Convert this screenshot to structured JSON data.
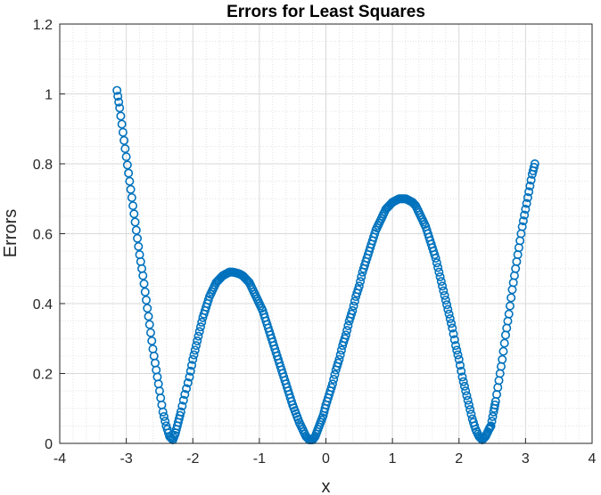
{
  "chart_data": {
    "type": "scatter",
    "title": "Errors for Least Squares",
    "xlabel": "x",
    "ylabel": "Errors",
    "xlim": [
      -4,
      4
    ],
    "ylim": [
      0,
      1.2
    ],
    "xticks": [
      -4,
      -3,
      -2,
      -1,
      0,
      1,
      2,
      3,
      4
    ],
    "yticks": [
      0,
      0.2,
      0.4,
      0.6,
      0.8,
      1,
      1.2
    ],
    "xtick_labels": [
      "-4",
      "-3",
      "-2",
      "-1",
      "0",
      "1",
      "2",
      "3",
      "4"
    ],
    "ytick_labels": [
      "0",
      "0.2",
      "0.4",
      "0.6",
      "0.8",
      "1",
      "1.2"
    ],
    "grid": true,
    "minor_grid": true,
    "marker": "circle-open",
    "colors": {
      "series": "#0072bd",
      "grid": "#d9d9d9",
      "axis": "#262626"
    },
    "series": [
      {
        "x": [
          -3.14,
          -3.1,
          -3.05,
          -3.0,
          -2.95,
          -2.9,
          -2.85,
          -2.8,
          -2.75,
          -2.7,
          -2.65,
          -2.6,
          -2.55,
          -2.5,
          -2.45,
          -2.4,
          -2.35,
          -2.3,
          -2.26,
          -2.22,
          -2.18,
          -2.12,
          -2.05,
          -2.0,
          -1.95,
          -1.9,
          -1.85,
          -1.8,
          -1.75,
          -1.7,
          -1.65,
          -1.6,
          -1.55,
          -1.5,
          -1.45,
          -1.4,
          -1.35,
          -1.3,
          -1.25,
          -1.2,
          -1.15,
          -1.1,
          -1.05,
          -1.0,
          -0.95,
          -0.9,
          -0.85,
          -0.8,
          -0.75,
          -0.7,
          -0.65,
          -0.6,
          -0.55,
          -0.5,
          -0.45,
          -0.4,
          -0.35,
          -0.3,
          -0.25,
          -0.2,
          -0.16,
          -0.12,
          -0.08,
          -0.04,
          0.0,
          0.05,
          0.1,
          0.15,
          0.2,
          0.25,
          0.3,
          0.35,
          0.4,
          0.45,
          0.5,
          0.55,
          0.6,
          0.65,
          0.7,
          0.75,
          0.8,
          0.85,
          0.9,
          0.95,
          1.0,
          1.05,
          1.1,
          1.15,
          1.2,
          1.25,
          1.3,
          1.35,
          1.4,
          1.45,
          1.5,
          1.55,
          1.6,
          1.65,
          1.7,
          1.75,
          1.8,
          1.85,
          1.9,
          1.95,
          2.0,
          2.05,
          2.1,
          2.15,
          2.2,
          2.25,
          2.3,
          2.35,
          2.4,
          2.45,
          2.48,
          2.52,
          2.55,
          2.6,
          2.65,
          2.7,
          2.75,
          2.8,
          2.85,
          2.9,
          2.95,
          3.0,
          3.05,
          3.1,
          3.14
        ],
        "y": [
          1.01,
          0.96,
          0.89,
          0.82,
          0.75,
          0.68,
          0.61,
          0.54,
          0.48,
          0.41,
          0.34,
          0.27,
          0.21,
          0.15,
          0.09,
          0.05,
          0.02,
          0.01,
          0.03,
          0.06,
          0.09,
          0.14,
          0.19,
          0.24,
          0.28,
          0.32,
          0.36,
          0.39,
          0.42,
          0.44,
          0.46,
          0.47,
          0.48,
          0.485,
          0.49,
          0.49,
          0.488,
          0.485,
          0.48,
          0.47,
          0.46,
          0.44,
          0.42,
          0.4,
          0.38,
          0.35,
          0.32,
          0.29,
          0.26,
          0.23,
          0.2,
          0.17,
          0.14,
          0.11,
          0.085,
          0.06,
          0.04,
          0.02,
          0.01,
          0.01,
          0.02,
          0.04,
          0.06,
          0.08,
          0.11,
          0.14,
          0.17,
          0.21,
          0.24,
          0.28,
          0.31,
          0.35,
          0.38,
          0.42,
          0.45,
          0.49,
          0.52,
          0.55,
          0.58,
          0.61,
          0.63,
          0.65,
          0.67,
          0.68,
          0.69,
          0.695,
          0.7,
          0.7,
          0.7,
          0.695,
          0.69,
          0.68,
          0.66,
          0.64,
          0.62,
          0.59,
          0.56,
          0.53,
          0.49,
          0.45,
          0.41,
          0.37,
          0.33,
          0.28,
          0.24,
          0.19,
          0.15,
          0.11,
          0.07,
          0.04,
          0.02,
          0.01,
          0.02,
          0.04,
          0.05,
          0.09,
          0.12,
          0.18,
          0.24,
          0.31,
          0.37,
          0.44,
          0.5,
          0.56,
          0.62,
          0.67,
          0.72,
          0.77,
          0.8
        ]
      }
    ]
  }
}
